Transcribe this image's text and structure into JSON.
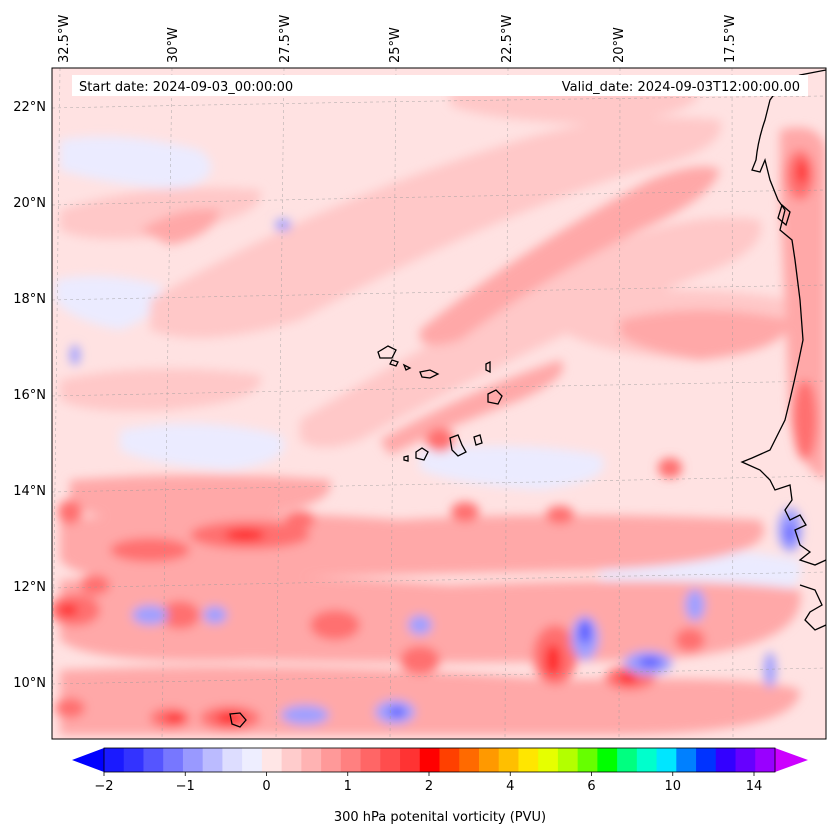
{
  "header": {
    "start_date": "Start date: 2024-09-03_00:00:00",
    "valid_date": "Valid_date: 2024-09-03T12:00:00.00"
  },
  "longitude_labels": [
    "32.5°W",
    "30°W",
    "27.5°W",
    "25°W",
    "22.5°W",
    "20°W",
    "17.5°W"
  ],
  "latitude_labels": [
    "22°N",
    "20°N",
    "18°N",
    "16°N",
    "14°N",
    "12°N",
    "10°N"
  ],
  "colorbar": {
    "title": "300 hPa potenital vorticity (PVU)",
    "tick_labels": [
      "−2",
      "−1",
      "0",
      "1",
      "2",
      "4",
      "6",
      "10",
      "14"
    ],
    "colors": [
      "#1a1aff",
      "#3333ff",
      "#5555ff",
      "#7777ff",
      "#9999ff",
      "#bbbbff",
      "#ddddff",
      "#eeeeff",
      "#ffe6e6",
      "#ffcccc",
      "#ffb3b3",
      "#ff9999",
      "#ff8080",
      "#ff6666",
      "#ff4d4d",
      "#ff3333",
      "#ff0000",
      "#ff4000",
      "#ff6a00",
      "#ff9900",
      "#ffbf00",
      "#ffe600",
      "#e6ff00",
      "#b3ff00",
      "#66ff00",
      "#00ff00",
      "#00ff80",
      "#00ffcc",
      "#00e6ff",
      "#0080ff",
      "#0033ff",
      "#3300ff",
      "#6600ff",
      "#9900ff"
    ],
    "under_color": "#0000ff",
    "over_color": "#cc00ff"
  },
  "map_colors": {
    "background": "#ffe0e0",
    "light_pink": "#ffcccc",
    "pink": "#ffb0b0",
    "red": "#ff7070",
    "strong_red": "#ff3030",
    "pale_blue": "#e8e8ff",
    "blue": "#9999ff",
    "strong_blue": "#4444ff",
    "grid": "#999999",
    "coast": "#000000"
  }
}
